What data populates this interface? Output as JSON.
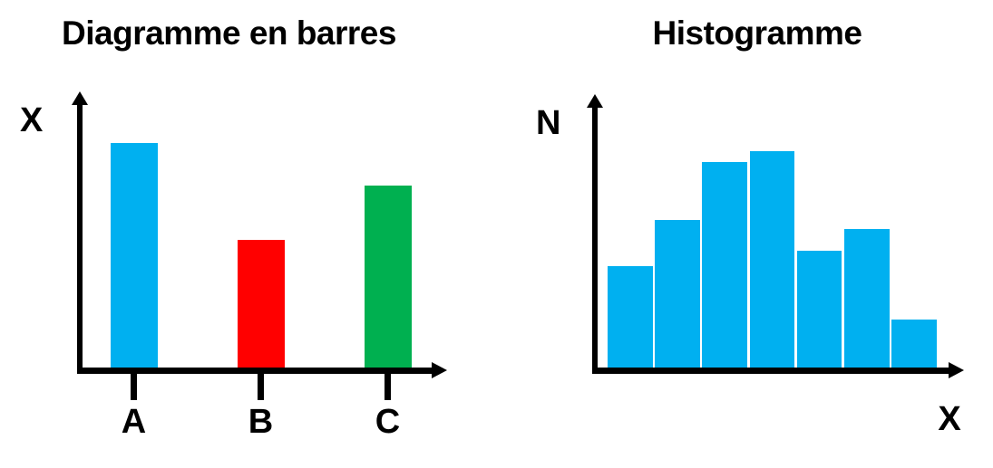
{
  "page": {
    "background": "#FFFFFF",
    "axis_color": "#000000",
    "text_color": "#000000"
  },
  "chart_data": [
    {
      "type": "bar",
      "title": "Diagramme en barres",
      "y_axis_label": "X",
      "x_axis_label": "",
      "categories": [
        "A",
        "B",
        "C"
      ],
      "values": [
        10,
        5.7,
        8.1
      ],
      "ylim": [
        0,
        10
      ],
      "bar_colors": [
        "#00B0F0",
        "#FF0000",
        "#00B050"
      ],
      "grid": false,
      "legend": false,
      "axis_arrows": true,
      "category_ticks": true
    },
    {
      "type": "histogram",
      "title": "Histogramme",
      "y_axis_label": "N",
      "x_axis_label": "X",
      "bins": 7,
      "values": [
        4.7,
        6.8,
        9.5,
        10,
        5.4,
        6.4,
        2.2
      ],
      "ylim": [
        0,
        10
      ],
      "bar_color": "#00B0F0",
      "grid": false,
      "legend": false,
      "axis_arrows": true
    }
  ]
}
